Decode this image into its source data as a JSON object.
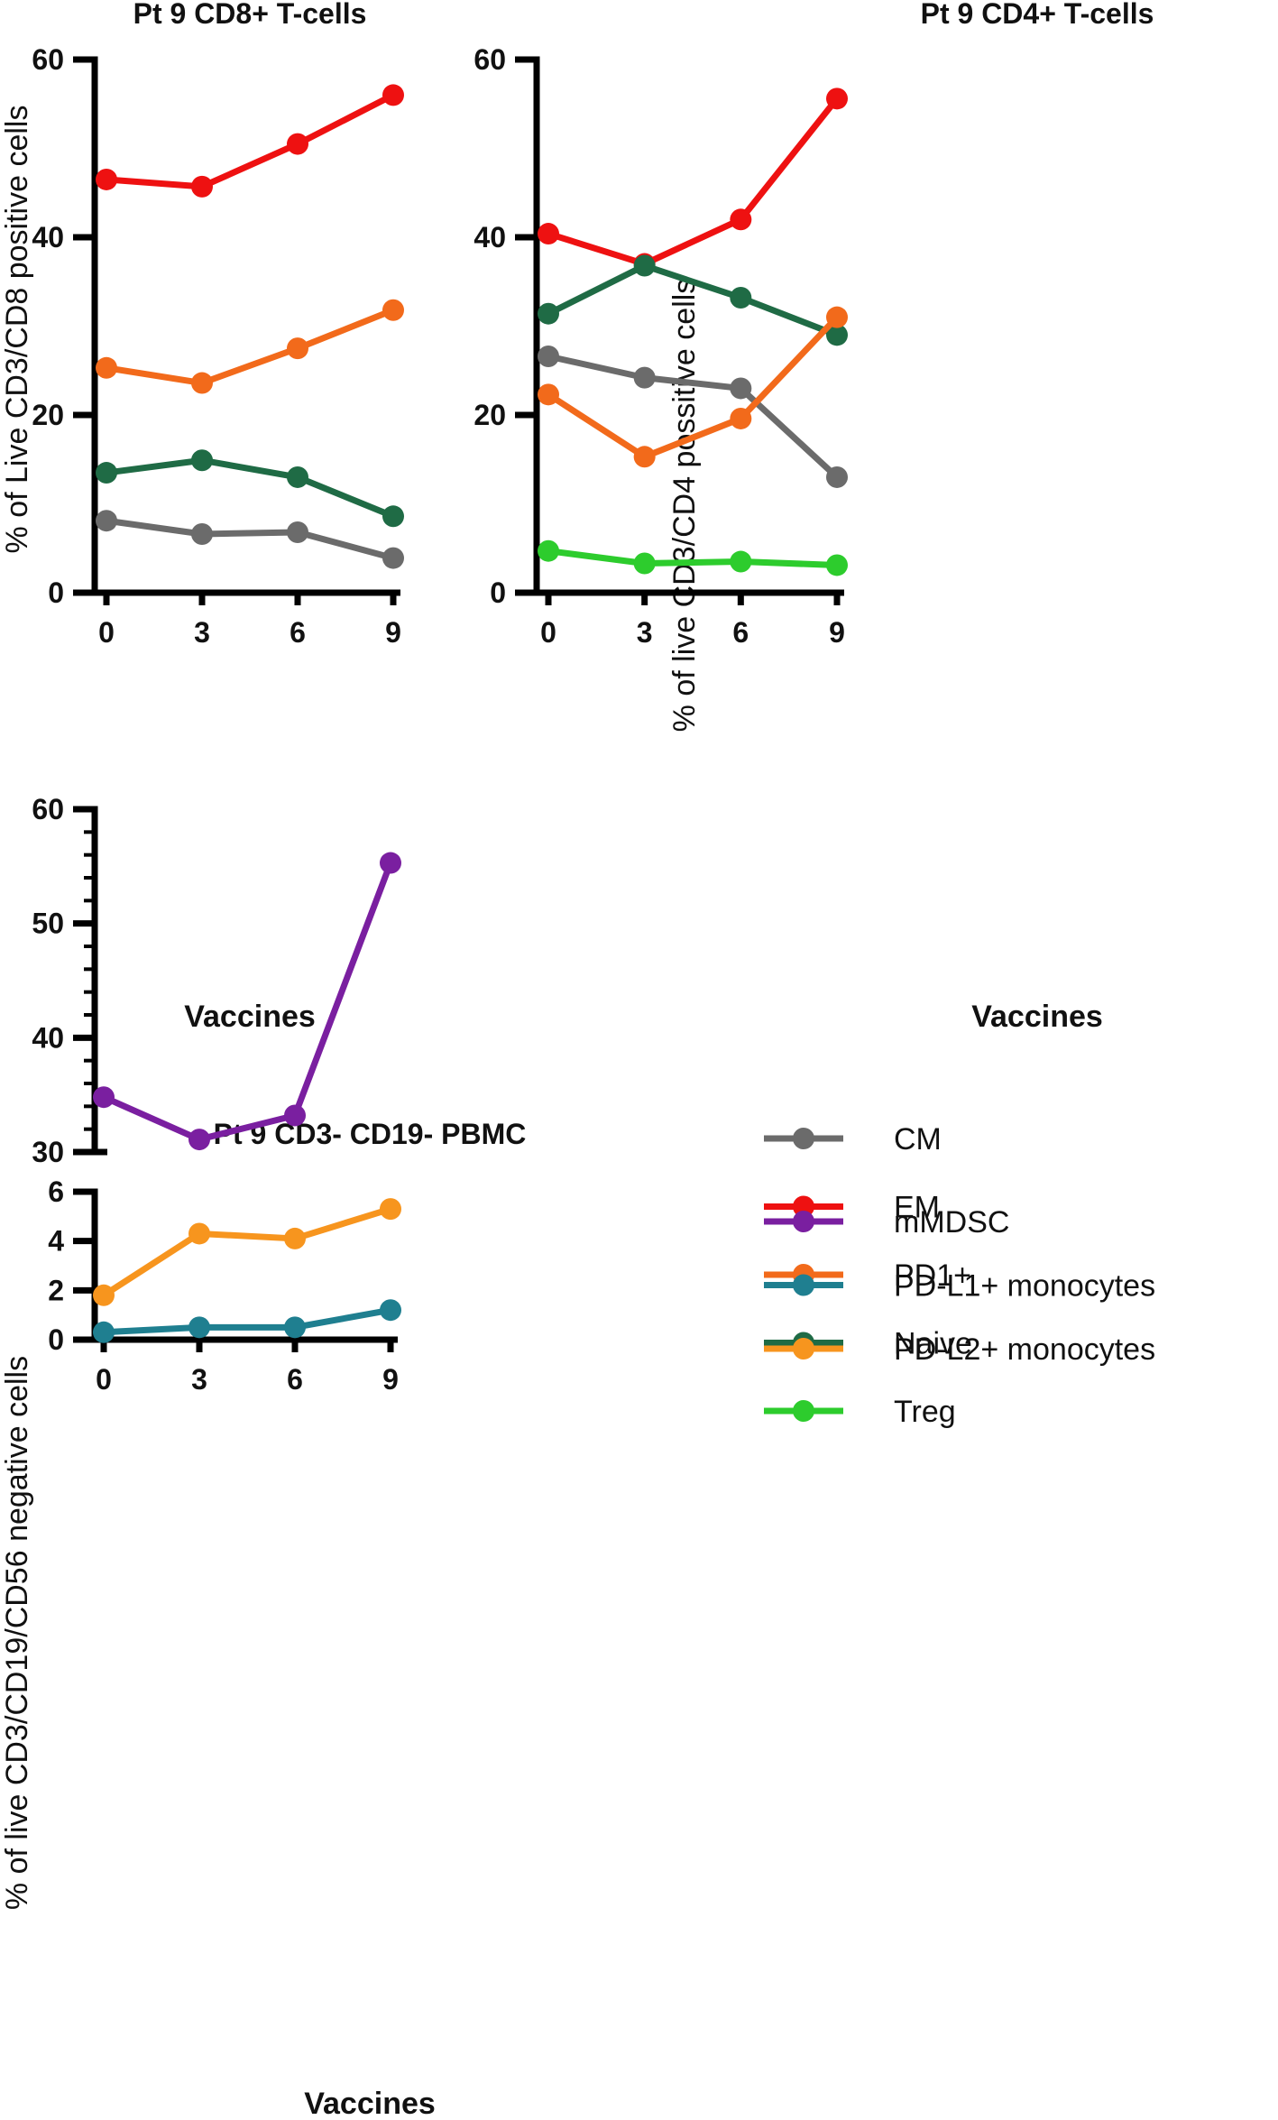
{
  "colors": {
    "CM": "#6b6b6b",
    "EM": "#ee1111",
    "PD1+": "#f26a1b",
    "Naive": "#1f6b45",
    "Treg": "#2dcc2d",
    "mMDSC": "#7a1fa0",
    "PD-L1+ monocytes": "#1f7f90",
    "PD-L2+ monocytes": "#f7951e"
  },
  "legend": {
    "tcell_items": [
      "CM",
      "EM",
      "PD1+",
      "Naive",
      "Treg"
    ],
    "pbmc_items": [
      "mMDSC",
      "PD-L1+ monocytes",
      "PD-L2+ monocytes"
    ]
  },
  "chart_data": [
    {
      "id": "cd8",
      "type": "line",
      "title": "Pt 9 CD8+ T-cells",
      "xlabel": "Vaccines",
      "ylabel": "% of Live CD3/CD8 positive cells",
      "x": [
        0,
        3,
        6,
        9
      ],
      "x_ticks": [
        "0",
        "3",
        "6",
        "9"
      ],
      "ylim": [
        0,
        60
      ],
      "y_ticks": [
        "0",
        "20",
        "40",
        "60"
      ],
      "series": [
        {
          "name": "EM",
          "values": [
            46.5,
            45.7,
            50.5,
            56.0
          ]
        },
        {
          "name": "PD1+",
          "values": [
            25.3,
            23.6,
            27.5,
            31.8
          ]
        },
        {
          "name": "Naive",
          "values": [
            13.5,
            14.9,
            13.0,
            8.6
          ]
        },
        {
          "name": "CM",
          "values": [
            8.1,
            6.6,
            6.8,
            3.9
          ]
        }
      ]
    },
    {
      "id": "cd4",
      "type": "line",
      "title": "Pt 9 CD4+ T-cells",
      "xlabel": "Vaccines",
      "ylabel": "% of live CD3/CD4 possitive cells",
      "x": [
        0,
        3,
        6,
        9
      ],
      "x_ticks": [
        "0",
        "3",
        "6",
        "9"
      ],
      "ylim": [
        0,
        60
      ],
      "y_ticks": [
        "0",
        "20",
        "40",
        "60"
      ],
      "series": [
        {
          "name": "EM",
          "values": [
            40.4,
            37.0,
            42.0,
            55.6
          ]
        },
        {
          "name": "Naive",
          "values": [
            31.4,
            36.8,
            33.2,
            29.0
          ]
        },
        {
          "name": "CM",
          "values": [
            26.6,
            24.2,
            23.0,
            13.0
          ]
        },
        {
          "name": "PD1+",
          "values": [
            22.3,
            15.3,
            19.6,
            31.0
          ]
        },
        {
          "name": "Treg",
          "values": [
            4.7,
            3.3,
            3.5,
            3.1
          ]
        }
      ]
    },
    {
      "id": "pbmc",
      "type": "line",
      "title": "Pt 9 CD3- CD19- PBMC",
      "xlabel": "Vaccines",
      "ylabel": "% of live CD3/CD19/CD56 negative cells",
      "x": [
        0,
        3,
        6,
        9
      ],
      "x_ticks": [
        "0",
        "3",
        "6",
        "9"
      ],
      "ylim_upper": [
        30,
        60
      ],
      "y_ticks_upper": [
        "30",
        "40",
        "50",
        "60"
      ],
      "ylim_lower": [
        0,
        6
      ],
      "y_ticks_lower": [
        "0",
        "2",
        "4",
        "6"
      ],
      "series": [
        {
          "name": "mMDSC",
          "values": [
            34.8,
            31.1,
            33.2,
            55.3
          ]
        },
        {
          "name": "PD-L2+ monocytes",
          "values": [
            1.8,
            4.3,
            4.1,
            5.3
          ]
        },
        {
          "name": "PD-L1+ monocytes",
          "values": [
            0.3,
            0.5,
            0.5,
            1.2
          ]
        }
      ]
    }
  ]
}
